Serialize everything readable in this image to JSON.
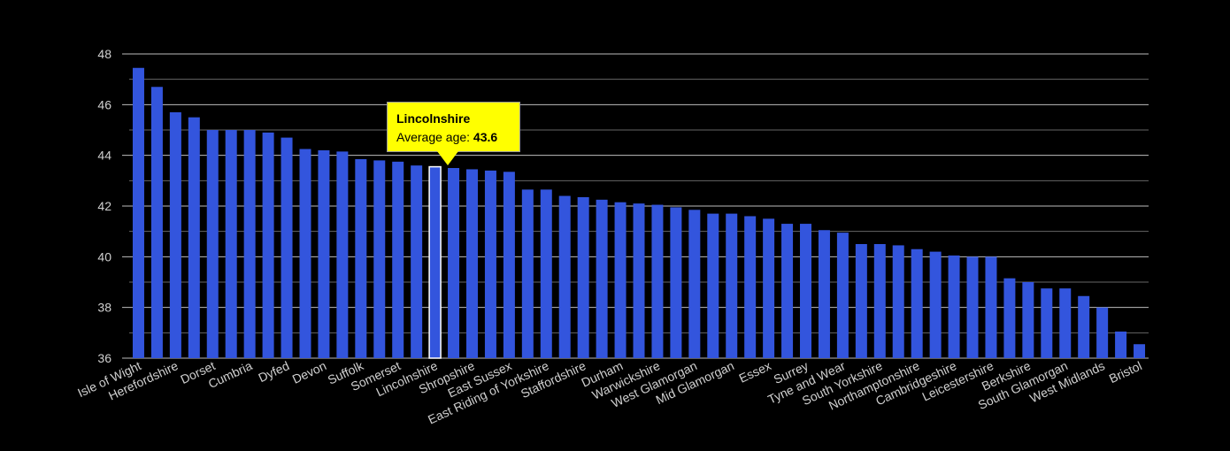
{
  "chart_data": {
    "type": "bar",
    "title": "",
    "xlabel": "",
    "ylabel": "Average age",
    "ylim": [
      36,
      48
    ],
    "yticks": [
      36,
      38,
      40,
      42,
      44,
      46,
      48
    ],
    "grid": true,
    "bar_color": "#3355dd",
    "highlight_index": 16,
    "categories": [
      "Isle of Wight",
      "",
      "Herefordshire",
      "",
      "Dorset",
      "",
      "Cumbria",
      "",
      "Dyfed",
      "",
      "Devon",
      "",
      "Suffolk",
      "",
      "Somerset",
      "",
      "Lincolnshire",
      "",
      "Shropshire",
      "",
      "East Sussex",
      "",
      "East Riding of Yorkshire",
      "",
      "Staffordshire",
      "",
      "Durham",
      "",
      "Warwickshire",
      "",
      "West Glamorgan",
      "",
      "Mid Glamorgan",
      "",
      "Essex",
      "",
      "Surrey",
      "",
      "Tyne and Wear",
      "",
      "South Yorkshire",
      "",
      "Northamptonshire",
      "",
      "Cambridgeshire",
      "",
      "Leicestershire",
      "",
      "Berkshire",
      "",
      "South Glamorgan",
      "",
      "West Midlands",
      "",
      "Bristol"
    ],
    "values": [
      47.45,
      46.7,
      45.7,
      45.5,
      45.0,
      45.0,
      45.0,
      44.9,
      44.7,
      44.25,
      44.2,
      44.15,
      43.85,
      43.8,
      43.75,
      43.6,
      43.55,
      43.5,
      43.45,
      43.4,
      43.35,
      42.65,
      42.65,
      42.4,
      42.35,
      42.25,
      42.15,
      42.1,
      42.05,
      41.95,
      41.85,
      41.7,
      41.7,
      41.6,
      41.5,
      41.3,
      41.3,
      41.05,
      40.95,
      40.5,
      40.5,
      40.45,
      40.3,
      40.2,
      40.05,
      40.0,
      40.0,
      39.15,
      39.0,
      38.75,
      38.75,
      38.45,
      38.0,
      37.05,
      36.55
    ]
  },
  "tooltip": {
    "title": "Lincolnshire",
    "label": "Average age: ",
    "value": "43.6"
  }
}
